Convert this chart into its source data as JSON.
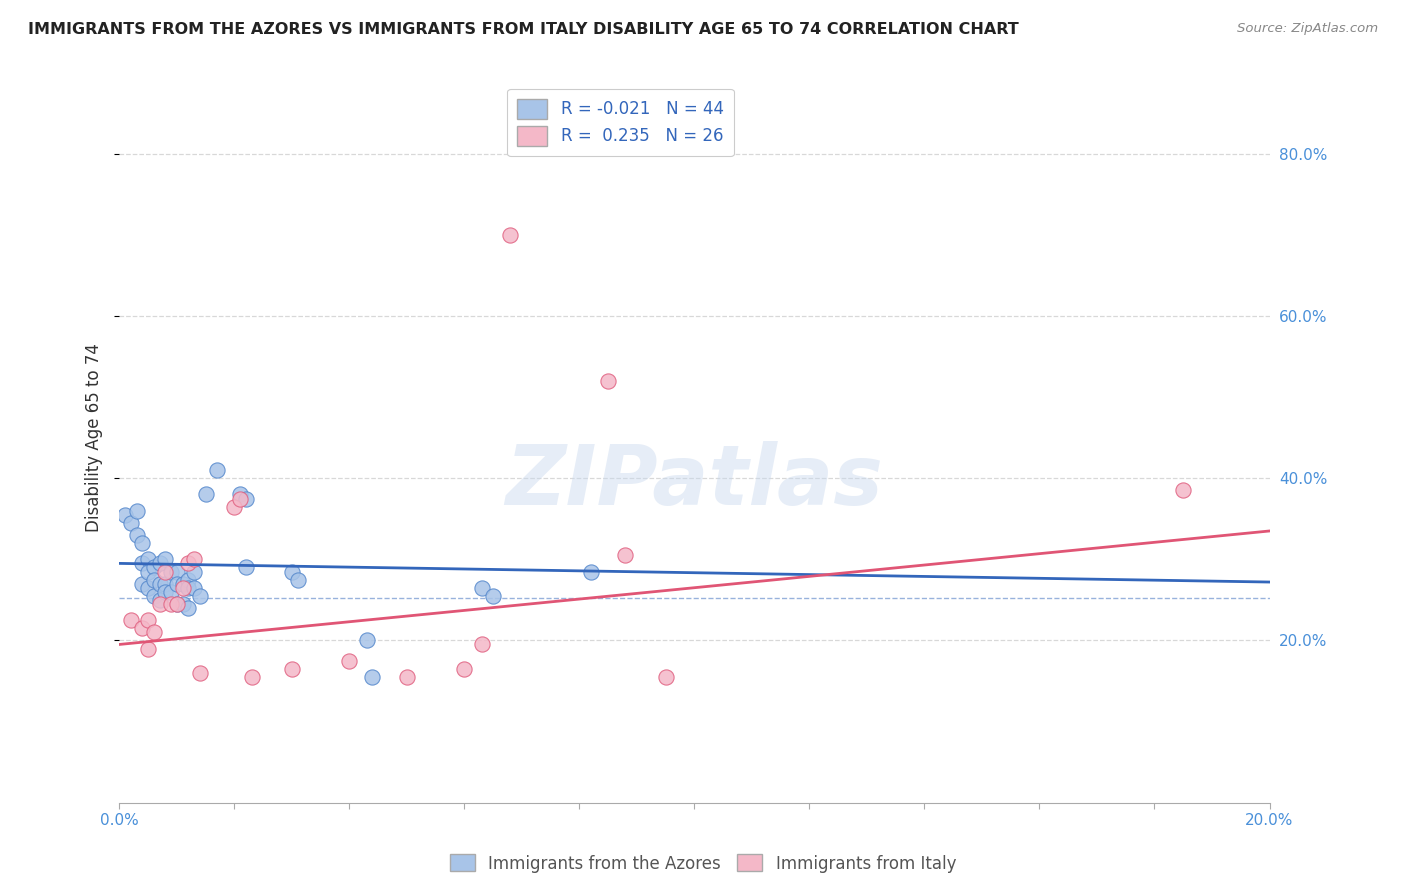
{
  "title": "IMMIGRANTS FROM THE AZORES VS IMMIGRANTS FROM ITALY DISABILITY AGE 65 TO 74 CORRELATION CHART",
  "source": "Source: ZipAtlas.com",
  "ylabel": "Disability Age 65 to 74",
  "right_ytick_vals": [
    0.2,
    0.4,
    0.6,
    0.8
  ],
  "xlim": [
    0.0,
    0.2
  ],
  "ylim": [
    0.0,
    0.9
  ],
  "azores_color": "#a8c4e8",
  "italy_color": "#f4b8c8",
  "azores_edge_color": "#5588cc",
  "italy_edge_color": "#e06080",
  "azores_line_color": "#3366bb",
  "italy_line_color": "#e05575",
  "azores_scatter_x": [
    0.001,
    0.002,
    0.003,
    0.003,
    0.004,
    0.004,
    0.004,
    0.005,
    0.005,
    0.005,
    0.006,
    0.006,
    0.006,
    0.007,
    0.007,
    0.007,
    0.008,
    0.008,
    0.008,
    0.009,
    0.009,
    0.01,
    0.01,
    0.01,
    0.011,
    0.011,
    0.012,
    0.012,
    0.012,
    0.013,
    0.013,
    0.014,
    0.015,
    0.017,
    0.021,
    0.022,
    0.022,
    0.03,
    0.031,
    0.043,
    0.044,
    0.063,
    0.065,
    0.082
  ],
  "azores_scatter_y": [
    0.355,
    0.345,
    0.36,
    0.33,
    0.32,
    0.295,
    0.27,
    0.3,
    0.285,
    0.265,
    0.29,
    0.275,
    0.255,
    0.295,
    0.27,
    0.25,
    0.3,
    0.27,
    0.26,
    0.285,
    0.26,
    0.285,
    0.27,
    0.245,
    0.27,
    0.245,
    0.275,
    0.265,
    0.24,
    0.285,
    0.265,
    0.255,
    0.38,
    0.41,
    0.38,
    0.375,
    0.29,
    0.285,
    0.275,
    0.2,
    0.155,
    0.265,
    0.255,
    0.285
  ],
  "italy_scatter_x": [
    0.002,
    0.004,
    0.005,
    0.005,
    0.006,
    0.007,
    0.008,
    0.009,
    0.01,
    0.011,
    0.012,
    0.013,
    0.014,
    0.02,
    0.021,
    0.023,
    0.03,
    0.04,
    0.05,
    0.06,
    0.063,
    0.068,
    0.085,
    0.088,
    0.095,
    0.185
  ],
  "italy_scatter_y": [
    0.225,
    0.215,
    0.225,
    0.19,
    0.21,
    0.245,
    0.285,
    0.245,
    0.245,
    0.265,
    0.295,
    0.3,
    0.16,
    0.365,
    0.375,
    0.155,
    0.165,
    0.175,
    0.155,
    0.165,
    0.195,
    0.7,
    0.52,
    0.305,
    0.155,
    0.385
  ],
  "azores_trendline_x": [
    0.0,
    0.2
  ],
  "azores_trendline_y": [
    0.295,
    0.272
  ],
  "italy_trendline_x": [
    0.0,
    0.2
  ],
  "italy_trendline_y": [
    0.195,
    0.335
  ],
  "watermark_text": "ZIPatlas",
  "background_color": "#ffffff",
  "grid_color": "#d8d8d8",
  "title_fontsize": 11.5,
  "source_fontsize": 9.5,
  "ylabel_fontsize": 12,
  "tick_fontsize": 11,
  "legend_fontsize": 12,
  "scatter_size": 120,
  "scatter_linewidth": 0.8,
  "scatter_alpha": 0.85
}
